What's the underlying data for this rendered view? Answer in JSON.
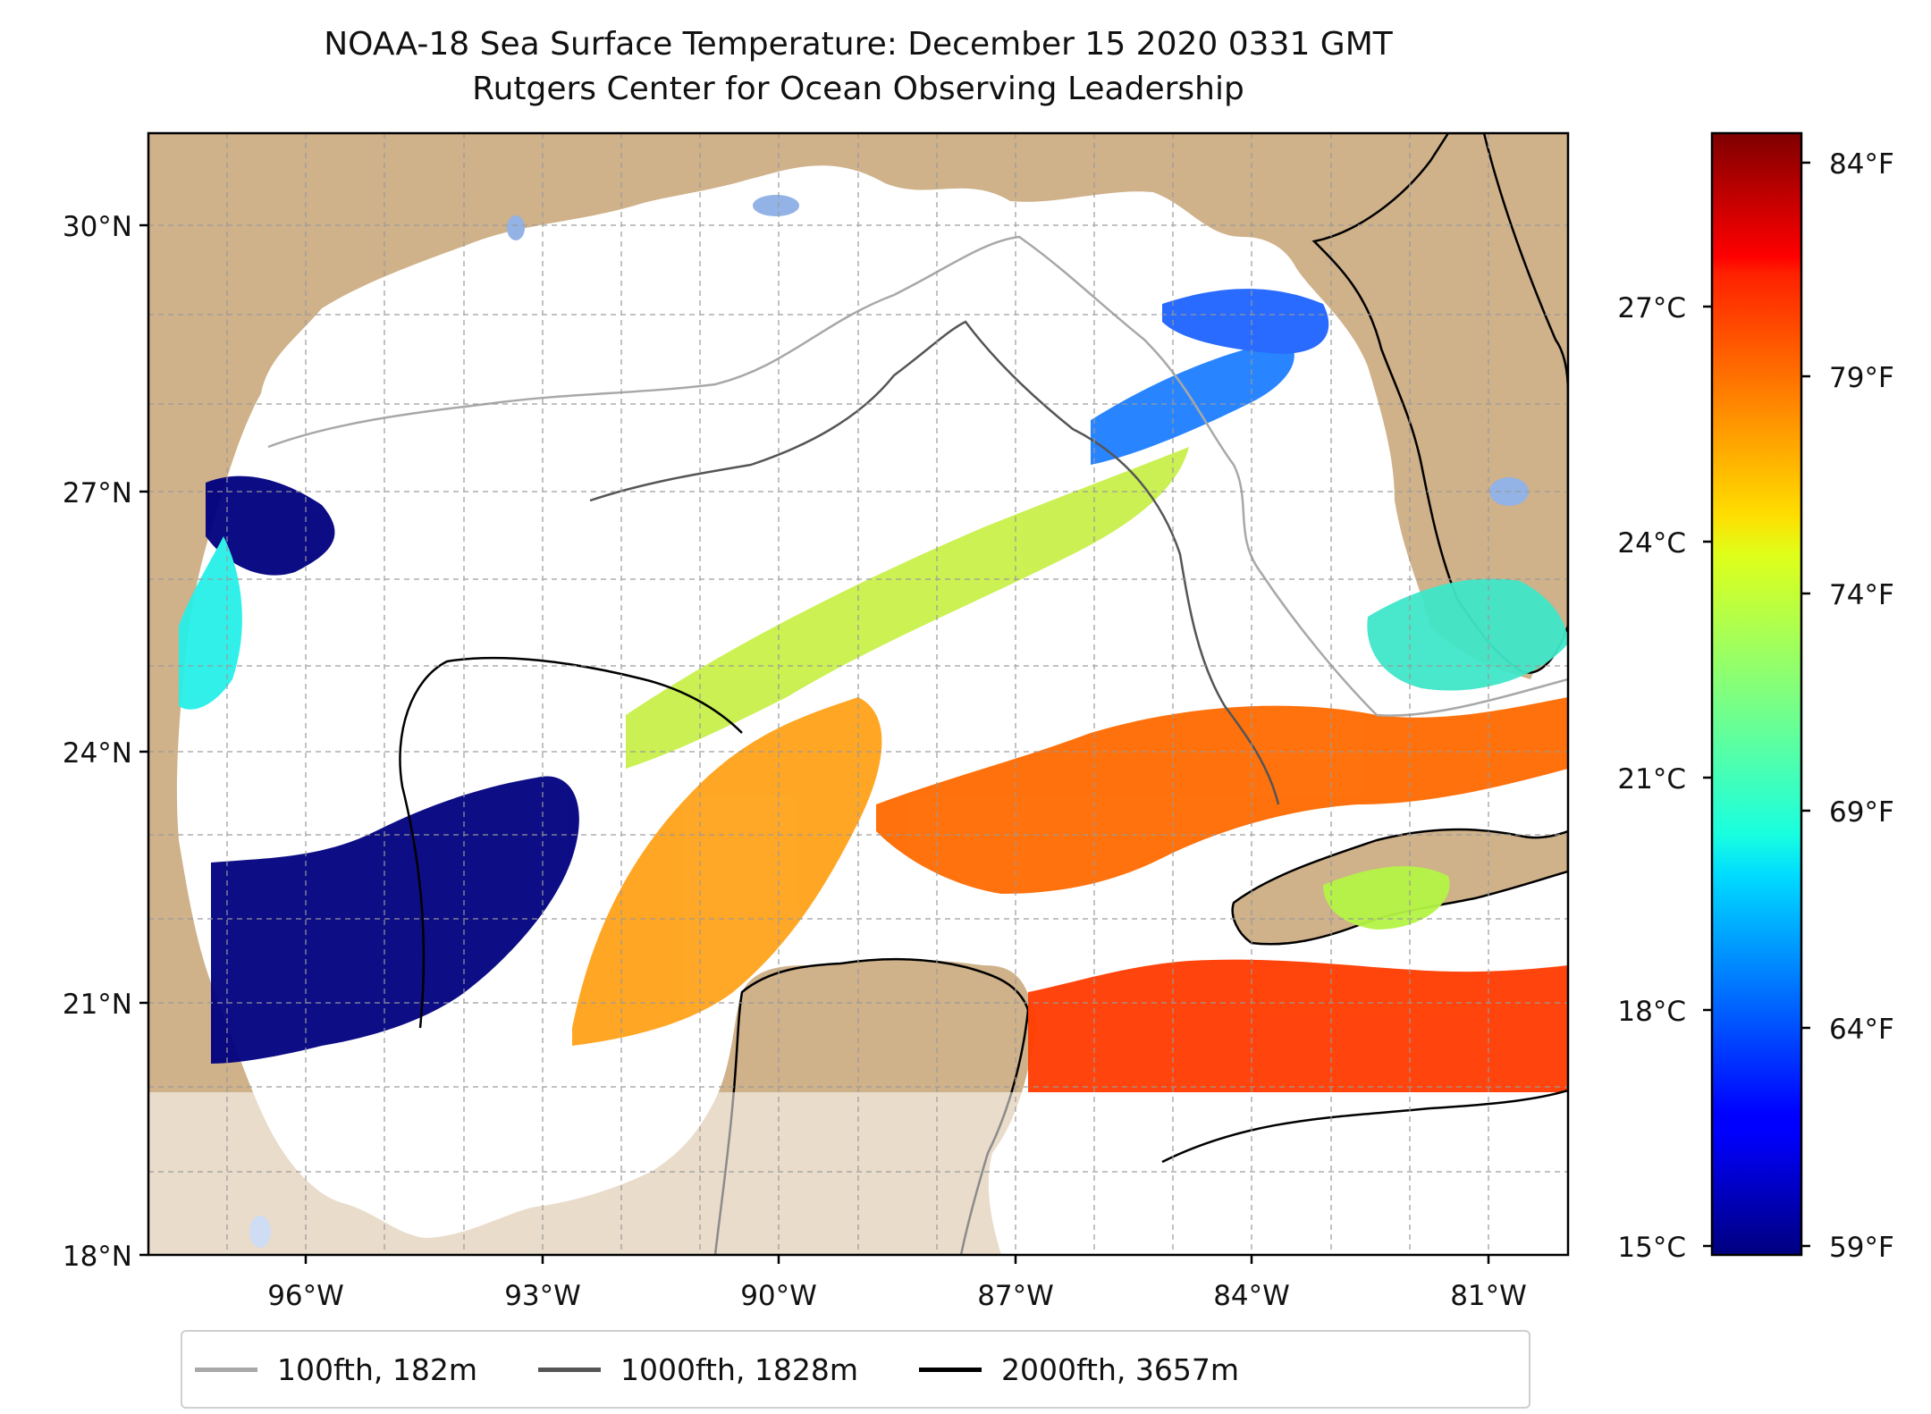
{
  "title": {
    "line1": "NOAA-18 Sea Surface Temperature: December 15 2020 0331 GMT",
    "line2": "Rutgers Center for Ocean Observing Leadership"
  },
  "map": {
    "lon_range": [
      -98.0,
      -79.7
    ],
    "lat_range": [
      18.0,
      31.0
    ],
    "lon_ticks": [
      "96°W",
      "93°W",
      "90°W",
      "87°W",
      "84°W",
      "81°W"
    ],
    "lat_ticks": [
      "18°N",
      "21°N",
      "24°N",
      "27°N",
      "30°N"
    ],
    "grid": true,
    "land_color": "#cfb18a",
    "lake_color": "#93b2e6",
    "no_data_color": "#ffffff"
  },
  "colorbar": {
    "colormap": "jet",
    "celsius_ticks": [
      "15°C",
      "18°C",
      "21°C",
      "24°C",
      "27°C"
    ],
    "fahrenheit_ticks": [
      "59°F",
      "64°F",
      "69°F",
      "74°F",
      "79°F",
      "84°F"
    ],
    "range_c": [
      15,
      29
    ]
  },
  "legend": {
    "items": [
      {
        "label": "100fth, 182m",
        "color": "#a8a8a8"
      },
      {
        "label": "1000fth, 1828m",
        "color": "#555555"
      },
      {
        "label": "2000fth, 3657m",
        "color": "#000000"
      }
    ]
  }
}
